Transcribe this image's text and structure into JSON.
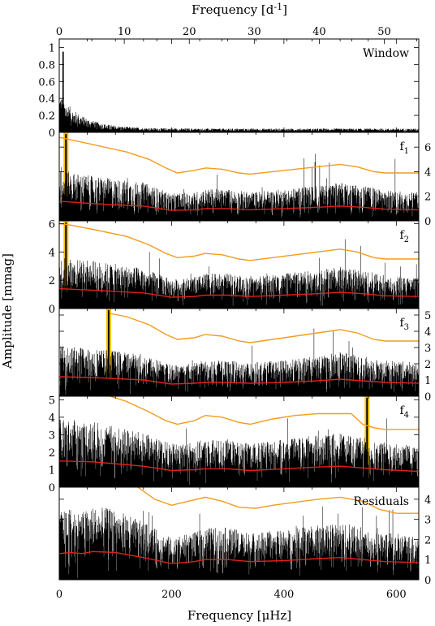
{
  "chart_data": {
    "type": "line",
    "top_axis": {
      "label": "Frequency [d",
      "label_sup": "-1",
      "label_end": "]",
      "range": [
        0,
        55.3
      ],
      "ticks": [
        "0",
        "10",
        "20",
        "30",
        "40",
        "50"
      ]
    },
    "bottom_axis": {
      "label_pre": "Frequency [",
      "label_mu": "μ",
      "label_post": "Hz]",
      "range": [
        0,
        640
      ],
      "ticks": [
        "0",
        "200",
        "400",
        "600"
      ]
    },
    "ylabel": "Amplitude [mmag]",
    "panels": [
      {
        "name": "Window",
        "label": "Window",
        "ylim": [
          0,
          1.1
        ],
        "yticks": [
          "0",
          "0.2",
          "0.4",
          "0.6",
          "0.8",
          "1"
        ],
        "ytick_vals": [
          0,
          0.2,
          0.4,
          0.6,
          0.8,
          1
        ],
        "ytick_side": "left",
        "highlight": null,
        "threshold": null,
        "noise": null
      },
      {
        "name": "f1",
        "label": "f",
        "label_sub": "1",
        "ylim": [
          0,
          7.2
        ],
        "yticks": [
          "0",
          "2",
          "4",
          "6"
        ],
        "ytick_vals": [
          0,
          2,
          4,
          6
        ],
        "ytick_side": "right",
        "highlight": 12,
        "threshold": [
          [
            0,
            6.8
          ],
          [
            20,
            6.6
          ],
          [
            60,
            6.2
          ],
          [
            120,
            5.6
          ],
          [
            160,
            5.0
          ],
          [
            190,
            4.3
          ],
          [
            210,
            3.9
          ],
          [
            240,
            4.1
          ],
          [
            260,
            4.3
          ],
          [
            290,
            4.2
          ],
          [
            320,
            3.9
          ],
          [
            340,
            3.8
          ],
          [
            380,
            4.0
          ],
          [
            420,
            4.2
          ],
          [
            460,
            4.4
          ],
          [
            500,
            4.6
          ],
          [
            530,
            4.4
          ],
          [
            560,
            4.0
          ],
          [
            580,
            3.9
          ],
          [
            640,
            3.9
          ]
        ],
        "noise": [
          [
            0,
            1.6
          ],
          [
            60,
            1.4
          ],
          [
            150,
            1.2
          ],
          [
            200,
            0.85
          ],
          [
            240,
            0.9
          ],
          [
            260,
            1.0
          ],
          [
            300,
            1.0
          ],
          [
            340,
            0.9
          ],
          [
            400,
            1.0
          ],
          [
            460,
            1.1
          ],
          [
            500,
            1.2
          ],
          [
            540,
            1.1
          ],
          [
            580,
            0.95
          ],
          [
            640,
            0.9
          ]
        ]
      },
      {
        "name": "f2",
        "label": "f",
        "label_sub": "2",
        "ylim": [
          0,
          6.2
        ],
        "yticks": [
          "0",
          "2",
          "4",
          "6"
        ],
        "ytick_vals": [
          0,
          2,
          4,
          6
        ],
        "ytick_side": "left",
        "highlight": 12,
        "threshold": [
          [
            0,
            6.0
          ],
          [
            20,
            5.9
          ],
          [
            60,
            5.6
          ],
          [
            120,
            5.1
          ],
          [
            160,
            4.5
          ],
          [
            190,
            3.9
          ],
          [
            210,
            3.6
          ],
          [
            240,
            3.7
          ],
          [
            260,
            3.9
          ],
          [
            290,
            3.8
          ],
          [
            320,
            3.5
          ],
          [
            340,
            3.4
          ],
          [
            380,
            3.6
          ],
          [
            420,
            3.8
          ],
          [
            460,
            4.0
          ],
          [
            500,
            4.2
          ],
          [
            530,
            4.0
          ],
          [
            560,
            3.6
          ],
          [
            580,
            3.5
          ],
          [
            640,
            3.5
          ]
        ],
        "noise": [
          [
            0,
            1.4
          ],
          [
            60,
            1.3
          ],
          [
            150,
            1.1
          ],
          [
            200,
            0.8
          ],
          [
            240,
            0.85
          ],
          [
            260,
            0.95
          ],
          [
            300,
            0.95
          ],
          [
            340,
            0.85
          ],
          [
            400,
            0.95
          ],
          [
            460,
            1.05
          ],
          [
            500,
            1.15
          ],
          [
            540,
            1.05
          ],
          [
            580,
            0.9
          ],
          [
            640,
            0.85
          ]
        ]
      },
      {
        "name": "f3",
        "label": "f",
        "label_sub": "3",
        "ylim": [
          0,
          5.4
        ],
        "yticks": [
          "0",
          "1",
          "2",
          "3",
          "4",
          "5"
        ],
        "ytick_vals": [
          0,
          1,
          2,
          3,
          4,
          5
        ],
        "ytick_side": "right",
        "highlight": 88,
        "threshold": [
          [
            90,
            5.1
          ],
          [
            120,
            4.9
          ],
          [
            160,
            4.4
          ],
          [
            190,
            3.8
          ],
          [
            210,
            3.5
          ],
          [
            240,
            3.6
          ],
          [
            260,
            3.8
          ],
          [
            290,
            3.7
          ],
          [
            320,
            3.4
          ],
          [
            340,
            3.3
          ],
          [
            380,
            3.5
          ],
          [
            420,
            3.7
          ],
          [
            460,
            3.9
          ],
          [
            500,
            4.1
          ],
          [
            530,
            3.9
          ],
          [
            560,
            3.5
          ],
          [
            580,
            3.4
          ],
          [
            640,
            3.4
          ]
        ],
        "noise": [
          [
            0,
            1.2
          ],
          [
            60,
            1.15
          ],
          [
            150,
            1.0
          ],
          [
            200,
            0.75
          ],
          [
            240,
            0.8
          ],
          [
            260,
            0.85
          ],
          [
            300,
            0.85
          ],
          [
            340,
            0.8
          ],
          [
            400,
            0.85
          ],
          [
            460,
            0.95
          ],
          [
            500,
            1.05
          ],
          [
            540,
            0.95
          ],
          [
            580,
            0.85
          ],
          [
            640,
            0.8
          ]
        ]
      },
      {
        "name": "f4",
        "label": "f",
        "label_sub": "4",
        "ylim": [
          0,
          5.2
        ],
        "yticks": [
          "0",
          "1",
          "2",
          "3",
          "4",
          "5"
        ],
        "ytick_vals": [
          0,
          1,
          2,
          3,
          4,
          5
        ],
        "ytick_side": "left",
        "highlight": 548,
        "threshold": [
          [
            90,
            5.2
          ],
          [
            120,
            4.9
          ],
          [
            160,
            4.3
          ],
          [
            190,
            3.8
          ],
          [
            210,
            3.6
          ],
          [
            240,
            3.8
          ],
          [
            260,
            4.1
          ],
          [
            290,
            4.0
          ],
          [
            320,
            3.7
          ],
          [
            340,
            3.6
          ],
          [
            380,
            3.9
          ],
          [
            420,
            4.1
          ],
          [
            460,
            4.2
          ],
          [
            520,
            4.2
          ],
          [
            540,
            3.6
          ],
          [
            560,
            3.4
          ],
          [
            580,
            3.3
          ],
          [
            640,
            3.3
          ]
        ],
        "noise": [
          [
            0,
            1.5
          ],
          [
            60,
            1.45
          ],
          [
            150,
            1.2
          ],
          [
            200,
            0.95
          ],
          [
            240,
            1.0
          ],
          [
            260,
            1.05
          ],
          [
            300,
            1.05
          ],
          [
            340,
            0.95
          ],
          [
            400,
            1.05
          ],
          [
            460,
            1.15
          ],
          [
            500,
            1.2
          ],
          [
            540,
            1.1
          ],
          [
            580,
            1.0
          ],
          [
            640,
            0.9
          ]
        ]
      },
      {
        "name": "Residuals",
        "label": "Residuals",
        "ylim": [
          0,
          4.6
        ],
        "yticks": [
          "0",
          "1",
          "2",
          "3",
          "4"
        ],
        "ytick_vals": [
          0,
          1,
          2,
          3,
          4
        ],
        "ytick_side": "right",
        "highlight": null,
        "threshold": [
          [
            140,
            4.6
          ],
          [
            170,
            4.0
          ],
          [
            200,
            3.7
          ],
          [
            230,
            3.9
          ],
          [
            260,
            4.1
          ],
          [
            290,
            3.9
          ],
          [
            320,
            3.6
          ],
          [
            350,
            3.55
          ],
          [
            380,
            3.7
          ],
          [
            420,
            3.85
          ],
          [
            460,
            4.0
          ],
          [
            500,
            4.1
          ],
          [
            540,
            3.9
          ],
          [
            570,
            3.5
          ],
          [
            600,
            3.3
          ],
          [
            640,
            3.3
          ]
        ],
        "noise": [
          [
            0,
            1.3
          ],
          [
            20,
            1.35
          ],
          [
            40,
            1.3
          ],
          [
            60,
            1.4
          ],
          [
            100,
            1.35
          ],
          [
            150,
            1.1
          ],
          [
            200,
            0.8
          ],
          [
            240,
            0.9
          ],
          [
            260,
            1.0
          ],
          [
            300,
            1.0
          ],
          [
            340,
            0.9
          ],
          [
            400,
            0.95
          ],
          [
            460,
            1.05
          ],
          [
            500,
            1.1
          ],
          [
            540,
            1.0
          ],
          [
            580,
            0.9
          ],
          [
            640,
            0.85
          ]
        ]
      }
    ],
    "colors": {
      "spectrum": "#000000",
      "threshold": "#f39c1d",
      "noise": "#e0201b",
      "highlight": "#f5c400"
    }
  }
}
